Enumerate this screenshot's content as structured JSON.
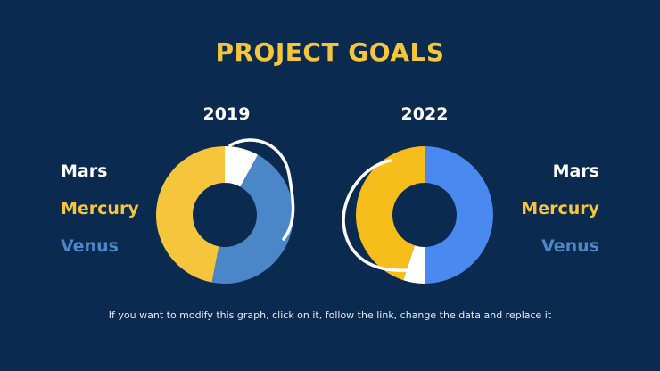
{
  "title": "PROJECT GOALS",
  "footer": "If you want to modify this graph, click on it, follow the link, change the data and replace it",
  "colors": {
    "background": "#0b2a4f",
    "Mars": "#ffffff",
    "Mercury": "#f5c53c",
    "Venus": "#4a86c8",
    "Venus2022": "#4a8af0",
    "Mercury2022": "#f7bd1a"
  },
  "legend_left": [
    {
      "name": "Mars",
      "color": "#ffffff"
    },
    {
      "name": "Mercury",
      "color": "#f5c53c"
    },
    {
      "name": "Venus",
      "color": "#4a86c8"
    }
  ],
  "legend_right": [
    {
      "name": "Mars",
      "color": "#ffffff"
    },
    {
      "name": "Mercury",
      "color": "#f5c53c"
    },
    {
      "name": "Venus",
      "color": "#4a86c8"
    }
  ],
  "chart_data": [
    {
      "type": "pie",
      "variant": "donut",
      "title": "2019",
      "categories": [
        "Mars",
        "Venus",
        "Mercury"
      ],
      "values": [
        8,
        45,
        47
      ],
      "colors": [
        "#ffffff",
        "#4a86c8",
        "#f5c53c"
      ]
    },
    {
      "type": "pie",
      "variant": "donut",
      "title": "2022",
      "categories": [
        "Venus",
        "Mars",
        "Mercury"
      ],
      "values": [
        50,
        5,
        45
      ],
      "colors": [
        "#4a8af0",
        "#ffffff",
        "#f7bd1a"
      ]
    }
  ]
}
